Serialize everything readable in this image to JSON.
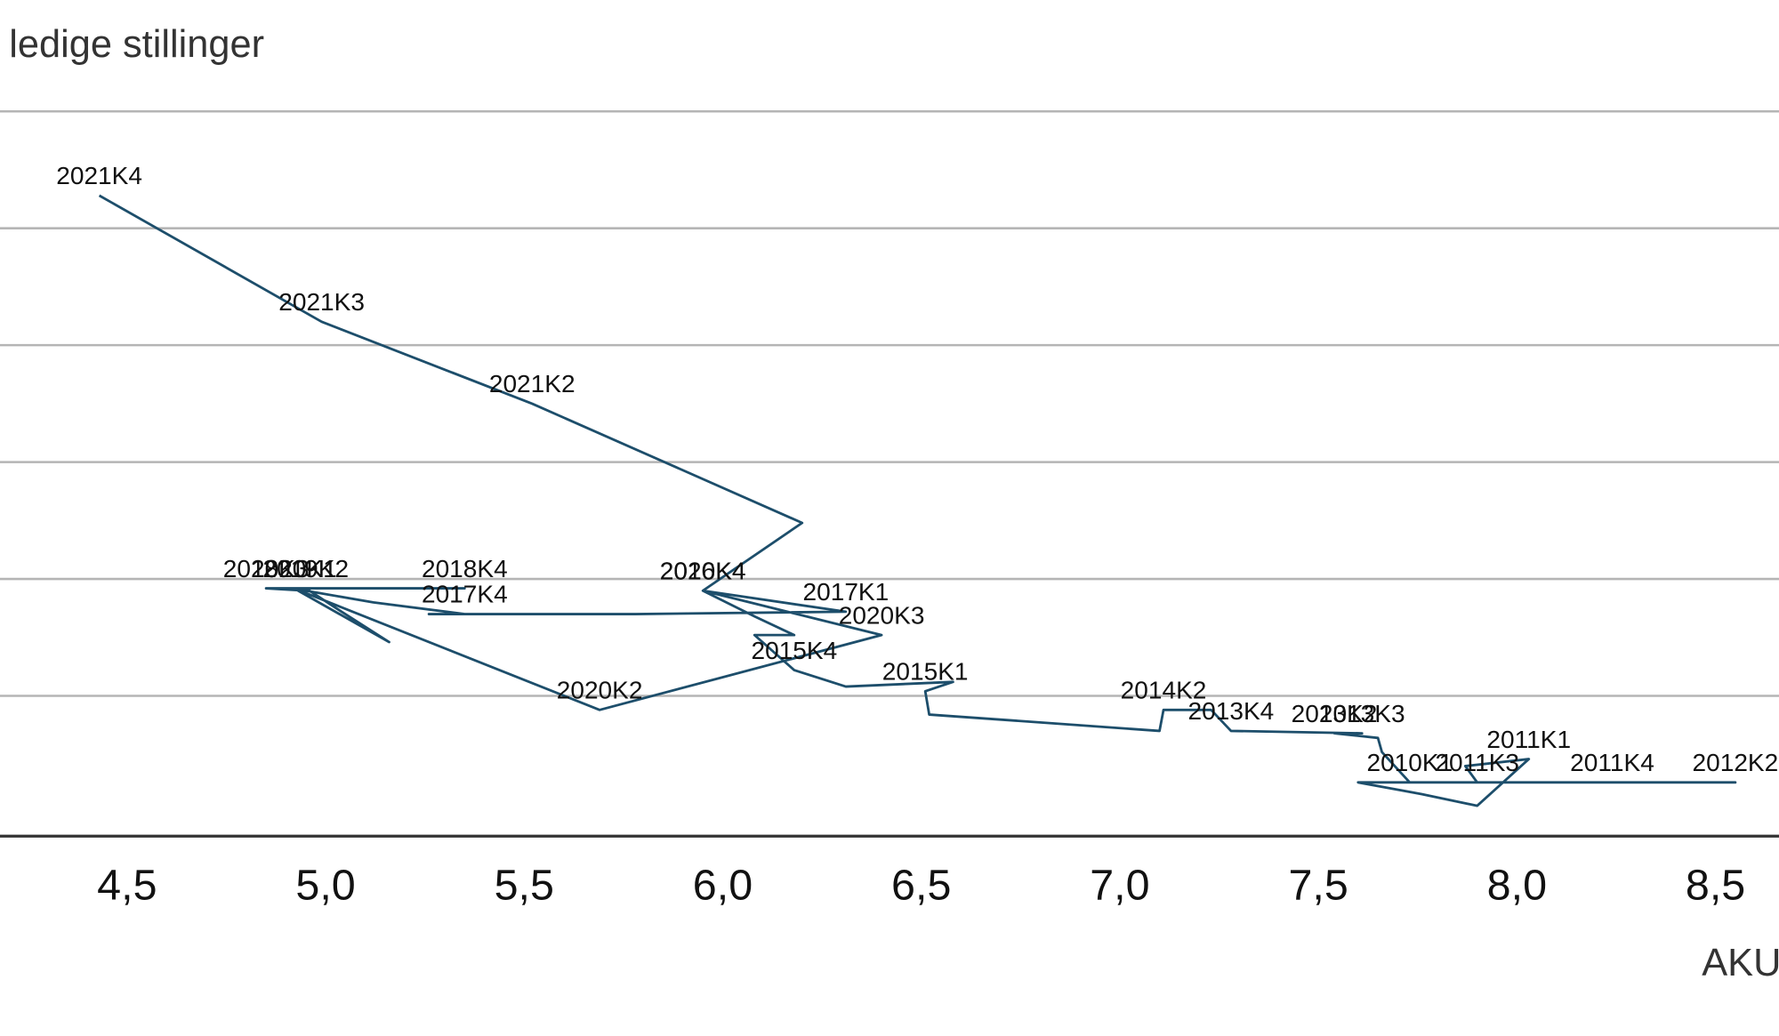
{
  "chart_data": {
    "type": "line",
    "y_label": "ledige stillinger",
    "x_label": "AKU",
    "xlim": [
      4.18,
      8.66
    ],
    "xticks": [
      {
        "value": 4.5,
        "label": "4,5"
      },
      {
        "value": 5.0,
        "label": "5,0"
      },
      {
        "value": 5.5,
        "label": "5,5"
      },
      {
        "value": 6.0,
        "label": "6,0"
      },
      {
        "value": 6.5,
        "label": "6,5"
      },
      {
        "value": 7.0,
        "label": "7,0"
      },
      {
        "value": 7.5,
        "label": "7,5"
      },
      {
        "value": 8.0,
        "label": "8,0"
      },
      {
        "value": 8.5,
        "label": "8,5"
      }
    ],
    "ylim": [
      1.4,
      4.5
    ],
    "yticks": [
      2.0,
      2.5,
      3.0,
      3.5,
      4.0,
      4.5
    ],
    "grid": true,
    "series": [
      {
        "color": "#1d4e6b",
        "labels": [
          "2010K1",
          null,
          null,
          null,
          "2011K1",
          null,
          "2011K3",
          "2011K4",
          null,
          "2012K2",
          null,
          null,
          null,
          "2013K2",
          "2013K3",
          "2013K4",
          null,
          "2014K2",
          null,
          null,
          "2015K1",
          null,
          null,
          "2015K4",
          null,
          null,
          null,
          "2016K4",
          "2017K1",
          null,
          null,
          "2017K4",
          null,
          null,
          "2018K3",
          "2018K4",
          null,
          "2019K2",
          null,
          null,
          "2020K1",
          "2020K2",
          "2020K3",
          "2020K4",
          null,
          "2021K2",
          "2021K3",
          "2021K4"
        ],
        "x": [
          7.73,
          7.6,
          7.76,
          7.9,
          8.03,
          7.87,
          7.9,
          8.24,
          8.39,
          8.55,
          7.73,
          7.66,
          7.65,
          7.54,
          7.61,
          7.28,
          7.23,
          7.11,
          7.1,
          6.52,
          6.51,
          6.58,
          6.31,
          6.18,
          6.08,
          6.18,
          6.08,
          5.95,
          6.31,
          5.78,
          5.26,
          5.35,
          5.12,
          4.95,
          4.85,
          5.35,
          5.12,
          4.95,
          5.04,
          5.16,
          4.92,
          5.69,
          6.4,
          5.95,
          6.2,
          5.52,
          4.99,
          4.43
        ],
        "values": [
          1.63,
          1.63,
          1.58,
          1.53,
          1.73,
          1.7,
          1.63,
          1.63,
          1.63,
          1.63,
          1.63,
          1.76,
          1.82,
          1.84,
          1.84,
          1.85,
          1.94,
          1.94,
          1.85,
          1.92,
          2.02,
          2.06,
          2.04,
          2.11,
          2.26,
          2.26,
          2.34,
          2.45,
          2.36,
          2.35,
          2.35,
          2.35,
          2.4,
          2.45,
          2.46,
          2.46,
          2.46,
          2.46,
          2.36,
          2.23,
          2.46,
          1.94,
          2.26,
          2.45,
          2.74,
          3.25,
          3.6,
          4.14
        ]
      }
    ]
  }
}
